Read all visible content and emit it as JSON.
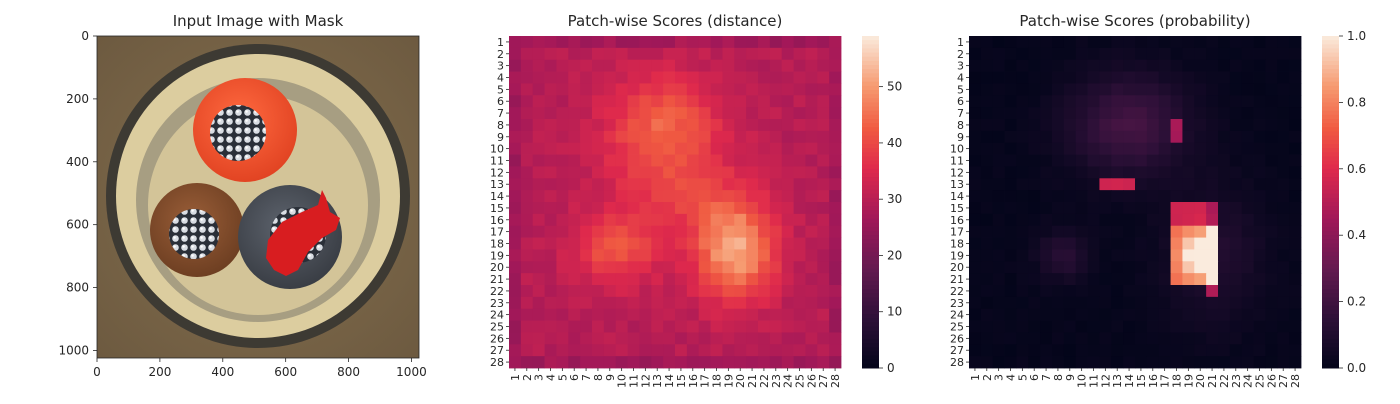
{
  "chart_data": [
    {
      "type": "image",
      "title": "Input Image with Mask",
      "xlabel": "",
      "ylabel": "",
      "xlim": [
        0,
        1024
      ],
      "ylim": [
        1024,
        0
      ],
      "x_ticks": [
        0,
        200,
        400,
        600,
        800,
        1000
      ],
      "y_ticks": [
        0,
        200,
        400,
        600,
        800,
        1000
      ],
      "x_tick_labels": [
        "0",
        "200",
        "400",
        "600",
        "800",
        "1000"
      ],
      "y_tick_labels": [
        "0",
        "200",
        "400",
        "600",
        "800",
        "1000"
      ],
      "objects": [
        {
          "name": "background-soil",
          "color": "#7a6548"
        },
        {
          "name": "outer-ring",
          "color": "#3b3a35"
        },
        {
          "name": "cream-dish",
          "color": "#d8c99a"
        },
        {
          "name": "inner-gray",
          "color": "#b2a88c"
        },
        {
          "name": "red-wire",
          "color": "#f0522e"
        },
        {
          "name": "brown-wire",
          "color": "#8a5230"
        },
        {
          "name": "gray-wire",
          "color": "#4e535c"
        },
        {
          "name": "mask-defect",
          "color": "#d51c1f"
        }
      ]
    },
    {
      "type": "heatmap",
      "title": "Patch-wise Scores (distance)",
      "grid": 28,
      "x_tick_labels": [
        "1",
        "2",
        "3",
        "4",
        "5",
        "6",
        "7",
        "8",
        "9",
        "10",
        "11",
        "12",
        "13",
        "14",
        "15",
        "16",
        "17",
        "18",
        "19",
        "20",
        "21",
        "22",
        "23",
        "24",
        "25",
        "26",
        "27",
        "28"
      ],
      "y_tick_labels": [
        "1",
        "2",
        "3",
        "4",
        "5",
        "6",
        "7",
        "8",
        "9",
        "10",
        "11",
        "12",
        "13",
        "14",
        "15",
        "16",
        "17",
        "18",
        "19",
        "20",
        "21",
        "22",
        "23",
        "24",
        "25",
        "26",
        "27",
        "28"
      ],
      "colorbar": {
        "min": 0,
        "max": 59,
        "ticks": [
          0,
          10,
          20,
          30,
          40,
          50
        ],
        "tick_labels": [
          "0",
          "10",
          "20",
          "30",
          "40",
          "50"
        ]
      },
      "colormap": "rocket"
    },
    {
      "type": "heatmap",
      "title": "Patch-wise Scores (probability)",
      "grid": 28,
      "x_tick_labels": [
        "1",
        "2",
        "3",
        "4",
        "5",
        "6",
        "7",
        "8",
        "9",
        "10",
        "11",
        "12",
        "13",
        "14",
        "15",
        "16",
        "17",
        "18",
        "19",
        "20",
        "21",
        "22",
        "23",
        "24",
        "25",
        "26",
        "27",
        "28"
      ],
      "y_tick_labels": [
        "1",
        "2",
        "3",
        "4",
        "5",
        "6",
        "7",
        "8",
        "9",
        "10",
        "11",
        "12",
        "13",
        "14",
        "15",
        "16",
        "17",
        "18",
        "19",
        "20",
        "21",
        "22",
        "23",
        "24",
        "25",
        "26",
        "27",
        "28"
      ],
      "colorbar": {
        "min": 0.0,
        "max": 1.0,
        "ticks": [
          0.0,
          0.2,
          0.4,
          0.6,
          0.8,
          1.0
        ],
        "tick_labels": [
          "0.0",
          "0.2",
          "0.4",
          "0.6",
          "0.8",
          "1.0"
        ]
      },
      "colormap": "rocket"
    }
  ]
}
